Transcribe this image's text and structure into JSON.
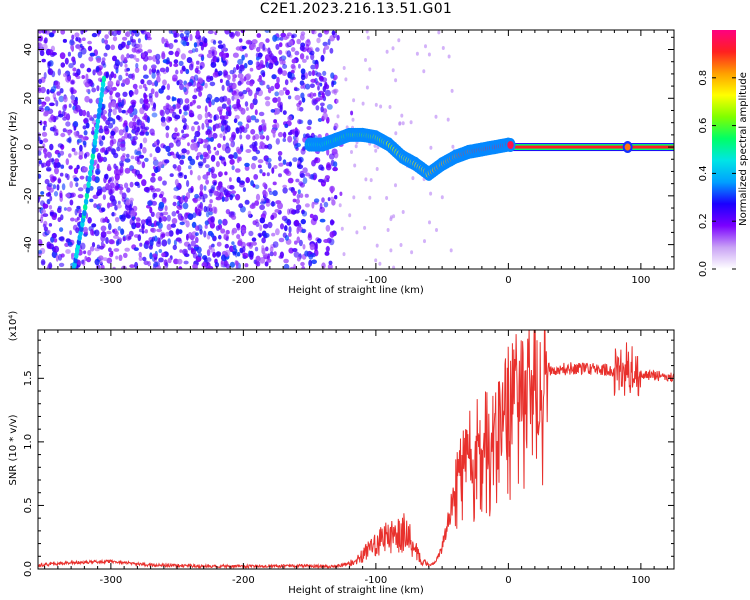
{
  "title": "C2E1.2023.216.13.51.G01",
  "colors": {
    "line": "#e8302c",
    "axis": "#000000",
    "background": "#ffffff"
  },
  "chart_data": [
    {
      "type": "heatmap",
      "xlabel": "Height of straight line (km)",
      "ylabel": "Frequency (Hz)",
      "xlim": [
        -355,
        125
      ],
      "ylim": [
        -50,
        48
      ],
      "x_ticks": [
        "-300",
        "-200",
        "-100",
        "0",
        "100"
      ],
      "y_ticks": [
        "-40",
        "-20",
        "0",
        "20",
        "40"
      ],
      "grid": false,
      "colorbar": {
        "label": "Normalized spectral amplitude",
        "range": [
          0,
          1
        ],
        "ticks": [
          "0.0",
          "0.2",
          "0.4",
          "0.6",
          "0.8"
        ],
        "colors": [
          "#ffffff",
          "#c9a2f5",
          "#7a00ff",
          "#1a00ff",
          "#00a0ff",
          "#00e5e5",
          "#00ff66",
          "#80ff00",
          "#ffff00",
          "#ffa000",
          "#ff2020",
          "#ff0080"
        ]
      },
      "signal_track": {
        "x": [
          -150,
          -140,
          -130,
          -120,
          -110,
          -100,
          -90,
          -80,
          -70,
          -60,
          -50,
          -40,
          -30,
          -20,
          -10,
          0,
          10,
          20,
          40,
          60,
          80,
          90,
          100,
          125
        ],
        "y": [
          1,
          1,
          3,
          5,
          5,
          4,
          1,
          -4,
          -7,
          -11,
          -7,
          -4,
          -2,
          -1,
          0,
          1,
          0,
          0,
          0,
          0,
          0,
          0,
          0,
          0
        ]
      },
      "streak_track": {
        "x": [
          -328,
          -320,
          -312,
          -305
        ],
        "y": [
          -50,
          -27,
          2,
          29
        ]
      }
    },
    {
      "type": "line",
      "xlabel": "Height of straight line (km)",
      "ylabel": "SNR (10 * v/v)",
      "y_multiplier": "(x10⁴)",
      "xlim": [
        -355,
        125
      ],
      "ylim": [
        0,
        18800
      ],
      "x_ticks": [
        "-300",
        "-200",
        "-100",
        "0",
        "100"
      ],
      "y_ticks": [
        "0.0",
        "0.5",
        "1.0",
        "1.5"
      ],
      "grid": false,
      "series": [
        {
          "x": [
            -355,
            -330,
            -300,
            -270,
            -240,
            -200,
            -160,
            -130,
            -115,
            -105,
            -95,
            -85,
            -78,
            -72,
            -66,
            -60,
            -55,
            -50,
            -45,
            -40,
            -35,
            -30,
            -25,
            -20,
            -15,
            -10,
            -5,
            0,
            5,
            10,
            15,
            20,
            25,
            30,
            40,
            50,
            60,
            70,
            80,
            85,
            90,
            95,
            100,
            110,
            125
          ],
          "y": [
            300,
            500,
            600,
            300,
            250,
            200,
            250,
            200,
            600,
            1500,
            2300,
            2700,
            2900,
            2000,
            700,
            300,
            500,
            1700,
            4000,
            6300,
            8300,
            9500,
            10000,
            10200,
            10500,
            11000,
            12000,
            13000,
            14200,
            14800,
            15200,
            15500,
            15600,
            15700,
            15700,
            15800,
            15750,
            15700,
            15600,
            15500,
            15700,
            15400,
            15300,
            15200,
            15100
          ]
        }
      ]
    }
  ]
}
